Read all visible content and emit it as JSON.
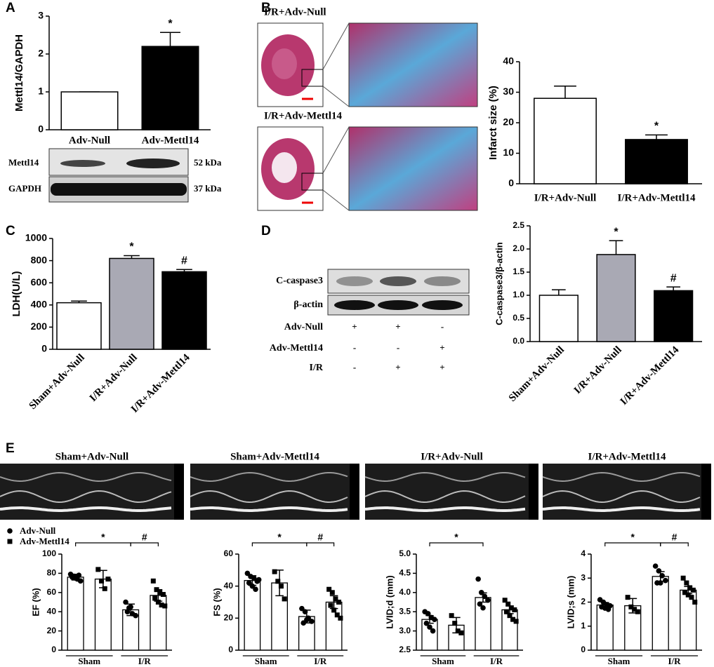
{
  "panel_labels": [
    "A",
    "B",
    "C",
    "D",
    "E"
  ],
  "blot_a": {
    "rows": [
      "Mettl14",
      "GAPDH"
    ],
    "sizes": [
      "52 kDa",
      "37 kDa"
    ]
  },
  "stain_b": {
    "titles": [
      "I/R+Adv-Null",
      "I/R+Adv-Mettl14"
    ]
  },
  "blot_d": {
    "rows": [
      "C-caspase3",
      "β-actin"
    ],
    "conditions": [
      {
        "name": "Adv-Null",
        "signs": [
          "+",
          "+",
          "-"
        ]
      },
      {
        "name": "Adv-Mettl14",
        "signs": [
          "-",
          "-",
          "+"
        ]
      },
      {
        "name": "I/R",
        "signs": [
          "-",
          "+",
          "+"
        ]
      }
    ]
  },
  "echo_e": {
    "titles": [
      "Sham+Adv-Null",
      "Sham+Adv-Mettl14",
      "I/R+Adv-Null",
      "I/R+Adv-Mettl14"
    ],
    "legend": [
      "Adv-Null",
      "Adv-Mettl14"
    ],
    "markers": [
      "circle",
      "square"
    ]
  },
  "chart_data": [
    {
      "type": "bar",
      "ylabel": "Mettl14/GAPDH",
      "categories": [
        "Adv-Null",
        "Adv-Mettl14"
      ],
      "values": [
        1,
        2.2
      ],
      "errors": [
        0,
        0.37
      ],
      "colors": [
        "#ffffff",
        "#000000"
      ],
      "ylim": [
        0,
        3
      ],
      "yticks": [
        0,
        1,
        2,
        3
      ],
      "annotations": [
        {
          "text": "*",
          "bar": 1
        }
      ]
    },
    {
      "type": "bar",
      "ylabel": "Infarct size (%)",
      "categories": [
        "I/R+Adv-Null",
        "I/R+Adv-Mettl14"
      ],
      "values": [
        28,
        14.5
      ],
      "errors": [
        4,
        1.5
      ],
      "colors": [
        "#ffffff",
        "#000000"
      ],
      "ylim": [
        0,
        40
      ],
      "yticks": [
        0,
        10,
        20,
        30,
        40
      ],
      "annotations": [
        {
          "text": "*",
          "bar": 1
        }
      ]
    },
    {
      "type": "bar",
      "ylabel": "LDH(U/L)",
      "categories": [
        "Sham+Adv-Null",
        "I/R+Adv-Null",
        "I/R+Adv-Mettl14"
      ],
      "values": [
        420,
        820,
        700
      ],
      "errors": [
        15,
        25,
        20
      ],
      "colors": [
        "#ffffff",
        "#a9a9b4",
        "#000000"
      ],
      "ylim": [
        0,
        1000
      ],
      "yticks": [
        0,
        200,
        400,
        600,
        800,
        1000
      ],
      "annotations": [
        {
          "text": "*",
          "bar": 1
        },
        {
          "text": "#",
          "bar": 2
        }
      ]
    },
    {
      "type": "bar",
      "ylabel": "C-caspase3/β-actin",
      "categories": [
        "Sham+Adv-Null",
        "I/R+Adv-Null",
        "I/R+Adv-Mettl14"
      ],
      "values": [
        1.0,
        1.88,
        1.1
      ],
      "errors": [
        0.12,
        0.3,
        0.08
      ],
      "colors": [
        "#ffffff",
        "#a9a9b4",
        "#000000"
      ],
      "ylim": [
        0,
        2.5
      ],
      "yticks": [
        {
          "value": 0,
          "label": "0.0"
        },
        0.5,
        {
          "value": 1,
          "label": "1.0"
        },
        1.5,
        {
          "value": 2,
          "label": "2.0"
        },
        2.5
      ],
      "annotations": [
        {
          "text": "*",
          "bar": 1
        },
        {
          "text": "#",
          "bar": 2
        }
      ]
    },
    {
      "type": "dotbar",
      "ylabel": "EF (%)",
      "groups": [
        "Sham",
        "I/R"
      ],
      "values": [
        76,
        74,
        42,
        57
      ],
      "errors": [
        3,
        9,
        6,
        6
      ],
      "points": [
        [
          79,
          77,
          74,
          72,
          76,
          75,
          78
        ],
        [
          84,
          72,
          64,
          74
        ],
        [
          50,
          44,
          38,
          36,
          40,
          45
        ],
        [
          72,
          63,
          60,
          58,
          54,
          50,
          47,
          46
        ]
      ],
      "markers": [
        "circle",
        "square",
        "circle",
        "square"
      ],
      "ylim": [
        0,
        100
      ],
      "yticks": [
        0,
        20,
        40,
        60,
        80,
        100
      ],
      "comparisons": [
        {
          "text": "*",
          "from": 0,
          "to": 2
        },
        {
          "text": "#",
          "from": 2,
          "to": 3
        }
      ]
    },
    {
      "type": "dotbar",
      "ylabel": "FS (%)",
      "groups": [
        "Sham",
        "I/R"
      ],
      "values": [
        43.5,
        42,
        21,
        30
      ],
      "errors": [
        3,
        8,
        4,
        4
      ],
      "points": [
        [
          48,
          46,
          45,
          43,
          42,
          40,
          38,
          44
        ],
        [
          49,
          43,
          40,
          32
        ],
        [
          26,
          24,
          20,
          18,
          17,
          19
        ],
        [
          38,
          36,
          32,
          30,
          28,
          25,
          22,
          20
        ]
      ],
      "markers": [
        "circle",
        "square",
        "circle",
        "square"
      ],
      "ylim": [
        0,
        60
      ],
      "yticks": [
        0,
        20,
        40,
        60
      ],
      "comparisons": [
        {
          "text": "*",
          "from": 0,
          "to": 2
        },
        {
          "text": "#",
          "from": 2,
          "to": 3
        }
      ]
    },
    {
      "type": "dotbar",
      "ylabel": "LVID;d (mm)",
      "groups": [
        "Sham",
        "I/R"
      ],
      "values": [
        3.3,
        3.15,
        3.87,
        3.55
      ],
      "errors": [
        0.1,
        0.2,
        0.12,
        0.1
      ],
      "points": [
        [
          3.5,
          3.45,
          3.35,
          3.3,
          3.2,
          3.1,
          3.0
        ],
        [
          3.4,
          3.2,
          3.0,
          2.95
        ],
        [
          4.35,
          4.0,
          3.9,
          3.8,
          3.7,
          3.6
        ],
        [
          3.8,
          3.7,
          3.6,
          3.55,
          3.5,
          3.4,
          3.3,
          3.25
        ]
      ],
      "markers": [
        "circle",
        "square",
        "circle",
        "square"
      ],
      "ylim": [
        2.5,
        5.0
      ],
      "yticks": [
        2.5,
        {
          "value": 3,
          "label": "3.0"
        },
        3.5,
        {
          "value": 4,
          "label": "4.0"
        },
        4.5,
        {
          "value": 5,
          "label": "5.0"
        }
      ],
      "comparisons": [
        {
          "text": "*",
          "from": 0,
          "to": 2
        }
      ]
    },
    {
      "type": "dotbar",
      "ylabel": "LVID;s (mm)",
      "groups": [
        "Sham",
        "I/R"
      ],
      "values": [
        1.88,
        1.85,
        3.07,
        2.5
      ],
      "errors": [
        0.1,
        0.3,
        0.2,
        0.15
      ],
      "points": [
        [
          2.1,
          2.0,
          1.9,
          1.85,
          1.8,
          1.75,
          1.7
        ],
        [
          2.2,
          1.8,
          1.7,
          1.6
        ],
        [
          3.5,
          3.3,
          3.1,
          2.9,
          2.8,
          2.8
        ],
        [
          3.0,
          2.8,
          2.6,
          2.5,
          2.4,
          2.3,
          2.2,
          2.0
        ]
      ],
      "markers": [
        "circle",
        "square",
        "circle",
        "square"
      ],
      "ylim": [
        0,
        4
      ],
      "yticks": [
        0,
        1,
        2,
        3,
        4
      ],
      "comparisons": [
        {
          "text": "*",
          "from": 0,
          "to": 2
        },
        {
          "text": "#",
          "from": 2,
          "to": 3
        }
      ]
    }
  ]
}
